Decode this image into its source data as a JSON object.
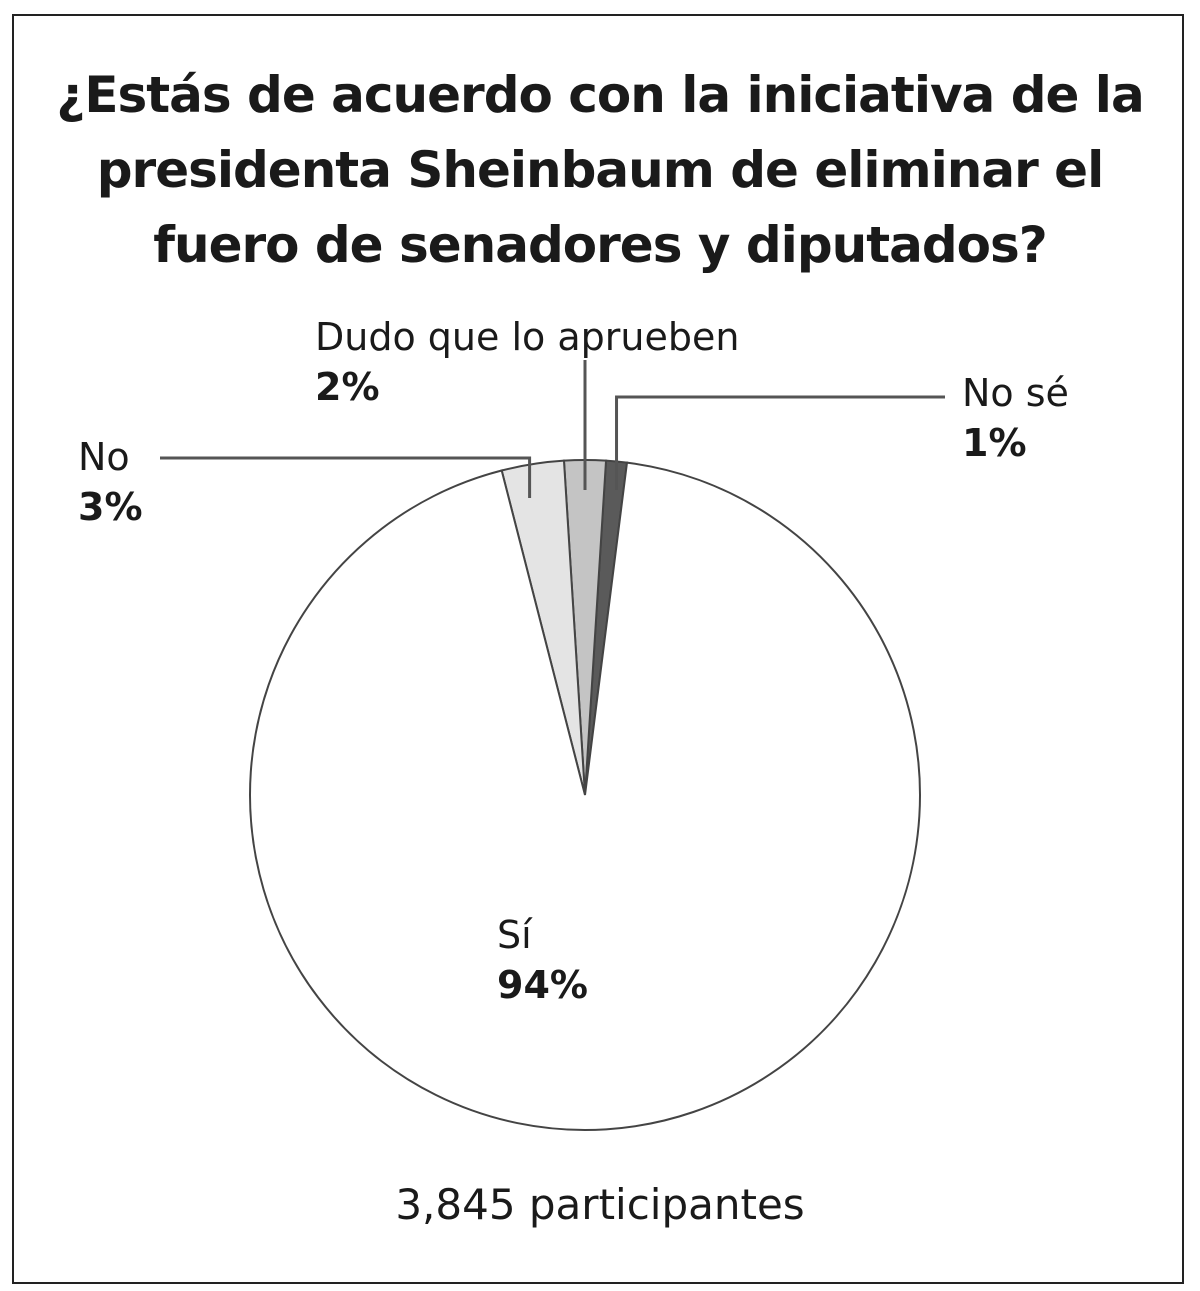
{
  "chart_data": {
    "type": "pie",
    "title": "¿Estás de acuerdo con la iniciativa de la presidenta Sheinbaum de eliminar el fuero de senadores y diputados?",
    "slices": [
      {
        "label": "Sí",
        "value": 94,
        "display": "94%",
        "color": "#ffffff"
      },
      {
        "label": "No",
        "value": 3,
        "display": "3%",
        "color": "#e4e4e4"
      },
      {
        "label": "Dudo que lo aprueben",
        "value": 2,
        "display": "2%",
        "color": "#c4c4c4"
      },
      {
        "label": "No sé",
        "value": 1,
        "display": "1%",
        "color": "#5a5a5a"
      }
    ],
    "footer": "3,845 participantes"
  }
}
